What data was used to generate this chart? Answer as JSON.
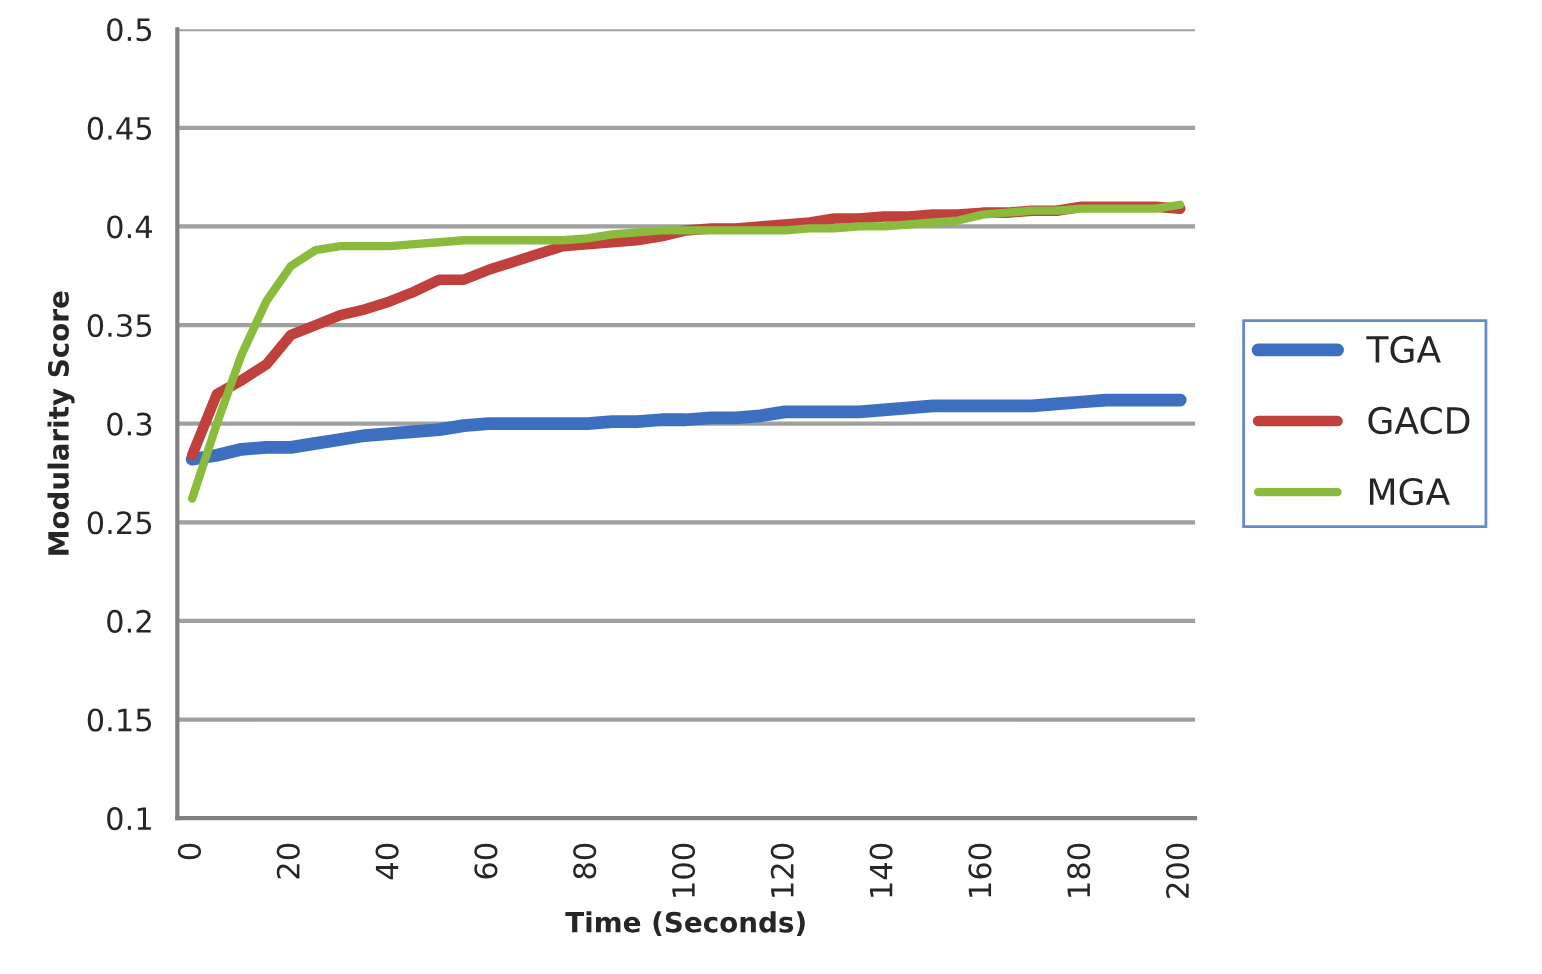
{
  "chart_data": {
    "type": "line",
    "xlabel": "Time (Seconds)",
    "ylabel": "Modularity Score",
    "x": [
      0,
      5,
      10,
      15,
      20,
      25,
      30,
      35,
      40,
      45,
      50,
      55,
      60,
      65,
      70,
      75,
      80,
      85,
      90,
      95,
      100,
      105,
      110,
      115,
      120,
      125,
      130,
      135,
      140,
      145,
      150,
      155,
      160,
      165,
      170,
      175,
      180,
      185,
      190,
      195,
      200
    ],
    "series": [
      {
        "name": "TGA",
        "color": "#3c6fc0",
        "values": [
          0.282,
          0.284,
          0.287,
          0.288,
          0.288,
          0.29,
          0.292,
          0.294,
          0.295,
          0.296,
          0.297,
          0.299,
          0.3,
          0.3,
          0.3,
          0.3,
          0.3,
          0.301,
          0.301,
          0.302,
          0.302,
          0.303,
          0.303,
          0.304,
          0.306,
          0.306,
          0.306,
          0.306,
          0.307,
          0.308,
          0.309,
          0.309,
          0.309,
          0.309,
          0.309,
          0.31,
          0.311,
          0.312,
          0.312,
          0.312,
          0.312
        ]
      },
      {
        "name": "GACD",
        "color": "#c0403c",
        "values": [
          0.284,
          0.315,
          0.322,
          0.33,
          0.345,
          0.35,
          0.355,
          0.358,
          0.362,
          0.367,
          0.373,
          0.373,
          0.378,
          0.382,
          0.386,
          0.39,
          0.391,
          0.392,
          0.393,
          0.395,
          0.398,
          0.399,
          0.399,
          0.4,
          0.401,
          0.402,
          0.404,
          0.404,
          0.405,
          0.405,
          0.406,
          0.406,
          0.407,
          0.407,
          0.408,
          0.408,
          0.41,
          0.41,
          0.41,
          0.41,
          0.409
        ]
      },
      {
        "name": "MGA",
        "color": "#8bbb3c",
        "values": [
          0.262,
          0.3,
          0.335,
          0.362,
          0.38,
          0.388,
          0.39,
          0.39,
          0.39,
          0.391,
          0.392,
          0.393,
          0.393,
          0.393,
          0.393,
          0.393,
          0.394,
          0.396,
          0.397,
          0.398,
          0.398,
          0.398,
          0.398,
          0.398,
          0.398,
          0.399,
          0.399,
          0.4,
          0.4,
          0.401,
          0.402,
          0.403,
          0.406,
          0.407,
          0.408,
          0.408,
          0.409,
          0.409,
          0.409,
          0.409,
          0.411
        ]
      }
    ],
    "xlim": [
      -3,
      203
    ],
    "xticks": [
      0,
      20,
      40,
      60,
      80,
      100,
      120,
      140,
      160,
      180,
      200
    ],
    "ylim": [
      0.1,
      0.5
    ],
    "yticks": [
      0.1,
      0.15,
      0.2,
      0.25,
      0.3,
      0.35,
      0.4,
      0.45,
      0.5
    ],
    "grid": "y",
    "legend": "right",
    "marker": "none",
    "line_style": "solid"
  }
}
